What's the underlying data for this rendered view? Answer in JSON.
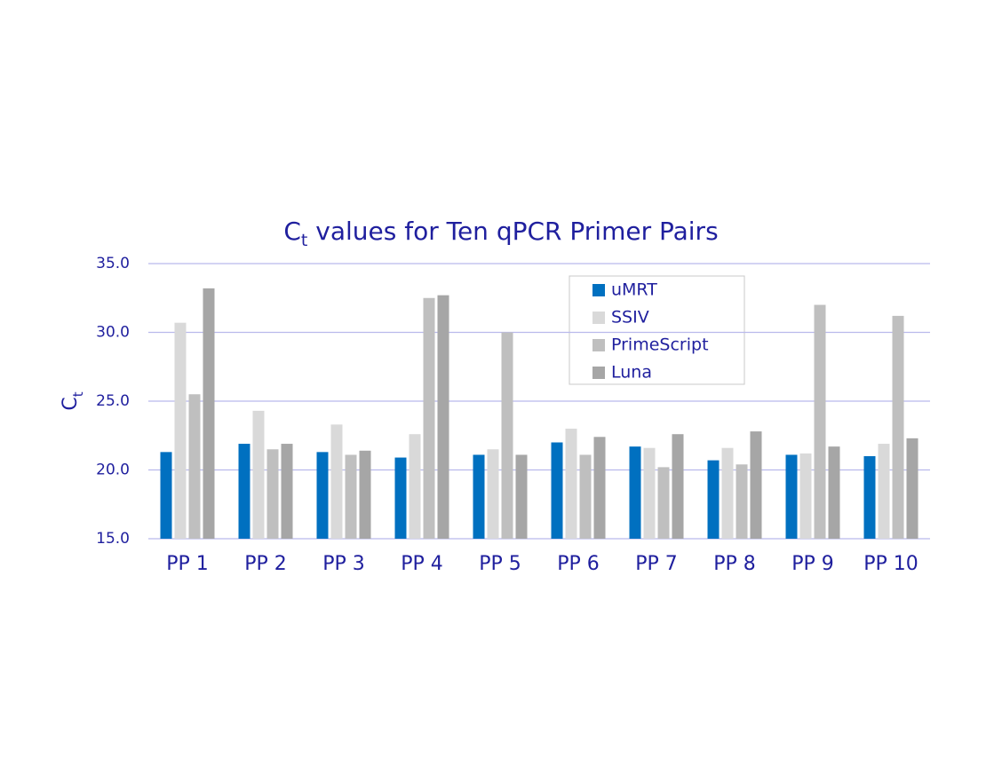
{
  "chart_data": {
    "type": "bar",
    "title": {
      "base": "C",
      "subscript": "t",
      "rest": " values for Ten qPCR Primer Pairs"
    },
    "y_label": {
      "base": "C",
      "subscript": "t"
    },
    "categories": [
      "PP 1",
      "PP 2",
      "PP 3",
      "PP 4",
      "PP 5",
      "PP 6",
      "PP 7",
      "PP 8",
      "PP 9",
      "PP 10"
    ],
    "series": [
      {
        "name": "uMRT",
        "color": "#0070c0",
        "values": [
          21.3,
          21.9,
          21.3,
          20.9,
          21.1,
          22.0,
          21.7,
          20.7,
          21.1,
          21.0
        ]
      },
      {
        "name": "SSIV",
        "color": "#d9d9d9",
        "values": [
          30.7,
          24.3,
          23.3,
          22.6,
          21.5,
          23.0,
          21.6,
          21.6,
          21.2,
          21.9
        ]
      },
      {
        "name": "PrimeScript",
        "color": "#bfbfbf",
        "values": [
          25.5,
          21.5,
          21.1,
          32.5,
          30.0,
          21.1,
          20.2,
          20.4,
          32.0,
          31.2
        ]
      },
      {
        "name": "Luna",
        "color": "#a6a6a6",
        "values": [
          33.2,
          21.9,
          21.4,
          32.7,
          21.1,
          22.4,
          22.6,
          22.8,
          21.7,
          22.3
        ]
      }
    ],
    "ylim": [
      15,
      35
    ],
    "yticks": [
      {
        "value": 15,
        "label": "15.0"
      },
      {
        "value": 20,
        "label": "20.0"
      },
      {
        "value": 25,
        "label": "25.0"
      },
      {
        "value": 30,
        "label": "30.0"
      },
      {
        "value": 35,
        "label": "35.0"
      }
    ],
    "grid": true,
    "legend": "top-right"
  }
}
